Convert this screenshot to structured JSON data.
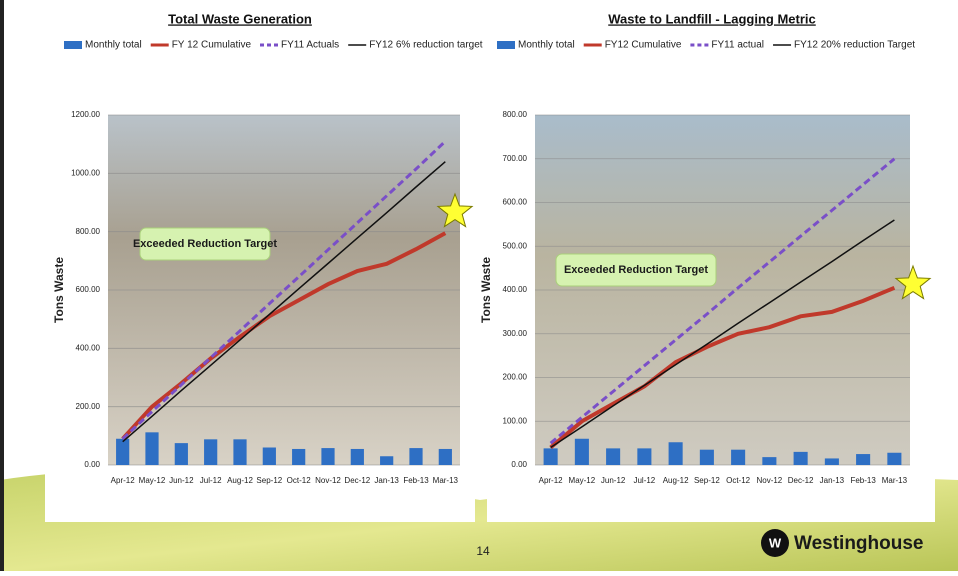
{
  "chart_data": [
    {
      "type": "combo",
      "title": "Total Waste Generation",
      "y_label": "Tons Waste",
      "annotation": "Exceeded Reduction Target",
      "categories": [
        "Apr-12",
        "May-12",
        "Jun-12",
        "Jul-12",
        "Aug-12",
        "Sep-12",
        "Oct-12",
        "Nov-12",
        "Dec-12",
        "Jan-13",
        "Feb-13",
        "Mar-13"
      ],
      "ylim": [
        0,
        1200
      ],
      "yticks": [
        {
          "value": 0,
          "label": "0.00"
        },
        {
          "value": 200,
          "label": "200.00"
        },
        {
          "value": 400,
          "label": "400.00"
        },
        {
          "value": 600,
          "label": "600.00"
        },
        {
          "value": 800,
          "label": "800.00"
        },
        {
          "value": 1000,
          "label": "1000.00"
        },
        {
          "value": 1200,
          "label": "1200.00"
        }
      ],
      "grid": true,
      "series": [
        {
          "name": "Monthly total",
          "type": "bar",
          "color": "#2e6fc4",
          "values": [
            90,
            112,
            75,
            88,
            88,
            60,
            55,
            58,
            55,
            30,
            58,
            55
          ]
        },
        {
          "name": "FY 12 Cumulative",
          "type": "line",
          "color": "#c0392b",
          "values": [
            90,
            200,
            280,
            365,
            440,
            510,
            565,
            620,
            665,
            690,
            740,
            795
          ]
        },
        {
          "name": "FY11 Actuals",
          "type": "line",
          "style": "dashed",
          "color": "#7a4fc8",
          "values": [
            90,
            183,
            275,
            368,
            460,
            553,
            645,
            738,
            830,
            923,
            1015,
            1110
          ]
        },
        {
          "name": "FY12 6% reduction target",
          "type": "line",
          "color": "#111111",
          "values": [
            80,
            167,
            255,
            342,
            429,
            516,
            604,
            691,
            778,
            865,
            953,
            1040
          ]
        }
      ]
    },
    {
      "type": "combo",
      "title": "Waste to Landfill - Lagging Metric",
      "y_label": "Tons Waste",
      "annotation": "Exceeded Reduction Target",
      "categories": [
        "Apr-12",
        "May-12",
        "Jun-12",
        "Jul-12",
        "Aug-12",
        "Sep-12",
        "Oct-12",
        "Nov-12",
        "Dec-12",
        "Jan-13",
        "Feb-13",
        "Mar-13"
      ],
      "ylim": [
        0,
        800
      ],
      "yticks": [
        {
          "value": 0,
          "label": "0.00"
        },
        {
          "value": 100,
          "label": "100.00"
        },
        {
          "value": 200,
          "label": "200.00"
        },
        {
          "value": 300,
          "label": "300.00"
        },
        {
          "value": 400,
          "label": "400.00"
        },
        {
          "value": 500,
          "label": "500.00"
        },
        {
          "value": 600,
          "label": "600.00"
        },
        {
          "value": 700,
          "label": "700.00"
        },
        {
          "value": 800,
          "label": "800.00"
        }
      ],
      "grid": true,
      "series": [
        {
          "name": "Monthly total",
          "type": "bar",
          "color": "#2e6fc4",
          "values": [
            38,
            60,
            38,
            38,
            52,
            35,
            35,
            18,
            30,
            15,
            25,
            28
          ]
        },
        {
          "name": "FY12 Cumulative",
          "type": "line",
          "color": "#c0392b",
          "values": [
            40,
            100,
            140,
            180,
            235,
            270,
            300,
            315,
            340,
            350,
            375,
            405
          ]
        },
        {
          "name": "FY11 actual",
          "type": "line",
          "style": "dashed",
          "color": "#7a4fc8",
          "values": [
            50,
            109,
            168,
            227,
            286,
            345,
            405,
            464,
            523,
            582,
            641,
            700
          ]
        },
        {
          "name": "FY12 20% reduction Target",
          "type": "line",
          "color": "#111111",
          "values": [
            40,
            87,
            135,
            182,
            229,
            276,
            324,
            371,
            418,
            465,
            513,
            560
          ]
        }
      ]
    }
  ],
  "footer": {
    "page_number": "14",
    "brand": "Westinghouse"
  }
}
